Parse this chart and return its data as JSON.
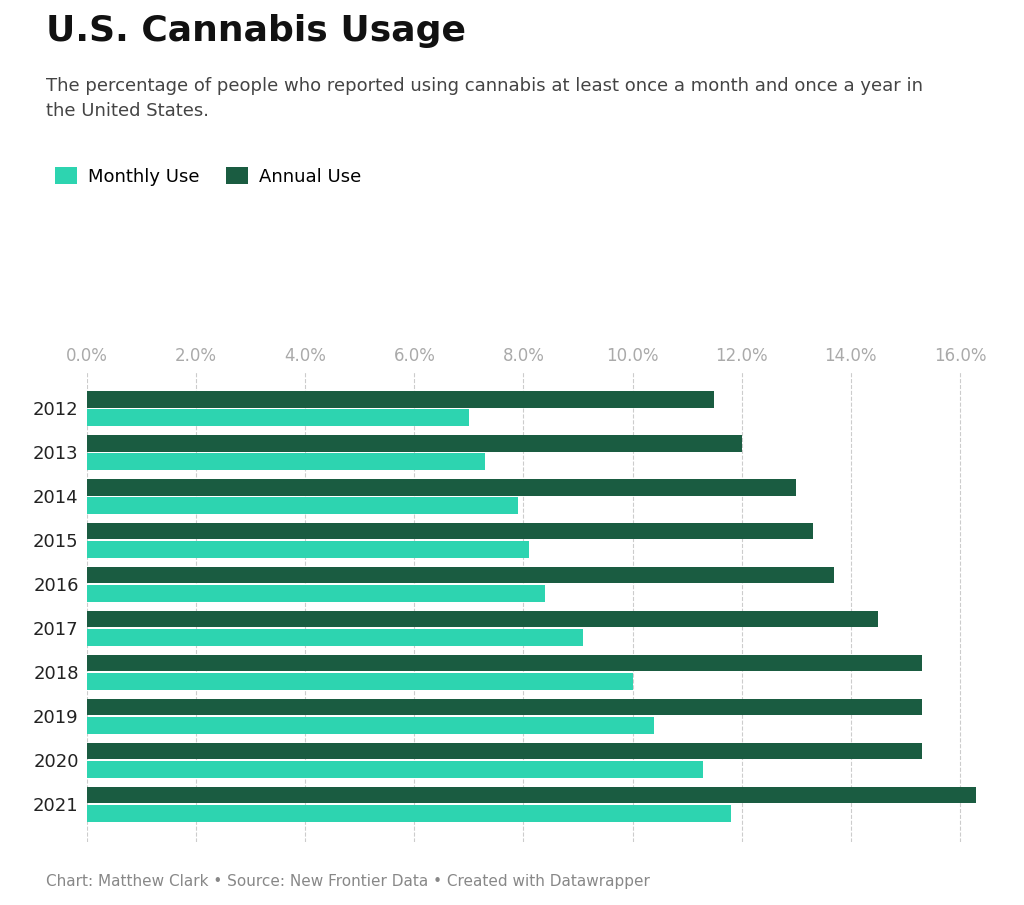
{
  "title": "U.S. Cannabis Usage",
  "subtitle": "The percentage of people who reported using cannabis at least once a month and once a year in\nthe United States.",
  "footnote": "Chart: Matthew Clark • Source: New Frontier Data • Created with Datawrapper",
  "years": [
    "2012",
    "2013",
    "2014",
    "2015",
    "2016",
    "2017",
    "2018",
    "2019",
    "2020",
    "2021"
  ],
  "annual_use": [
    11.5,
    12.0,
    13.0,
    13.3,
    13.7,
    14.5,
    15.3,
    15.3,
    15.3,
    16.3
  ],
  "monthly_use": [
    7.0,
    7.3,
    7.9,
    8.1,
    8.4,
    9.1,
    10.0,
    10.4,
    11.3,
    11.8
  ],
  "annual_color": "#1a5c41",
  "monthly_color": "#2dd4b0",
  "background_color": "#ffffff",
  "xlim": [
    0,
    16.8
  ],
  "xticks": [
    0.0,
    2.0,
    4.0,
    6.0,
    8.0,
    10.0,
    12.0,
    14.0,
    16.0
  ],
  "bar_height": 0.38,
  "title_fontsize": 26,
  "subtitle_fontsize": 13,
  "footnote_fontsize": 11,
  "legend_fontsize": 13,
  "ytick_fontsize": 13,
  "xtick_fontsize": 12
}
